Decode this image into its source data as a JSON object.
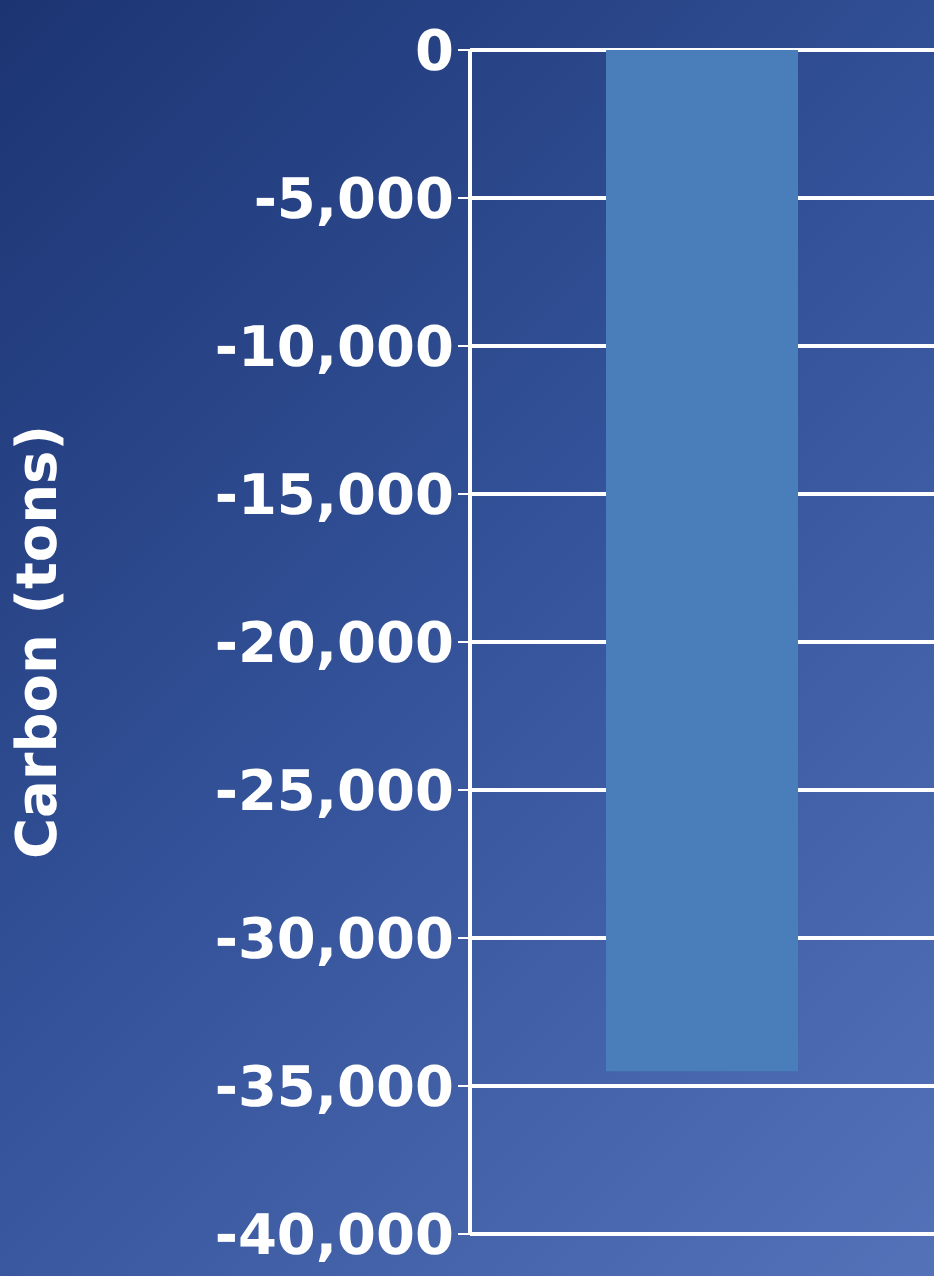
{
  "chart_data": {
    "type": "bar",
    "ylabel": "Carbon (tons)",
    "categories": [
      null
    ],
    "values": [
      -34500
    ],
    "color": "#4a7ebb",
    "ylim": [
      -40000,
      0
    ],
    "yticks": [
      {
        "value": 0,
        "label": "0"
      },
      {
        "value": -5000,
        "label": "-5,000"
      },
      {
        "value": -10000,
        "label": "-10,000"
      },
      {
        "value": -15000,
        "label": "-15,000"
      },
      {
        "value": -20000,
        "label": "-20,000"
      },
      {
        "value": -25000,
        "label": "-25,000"
      },
      {
        "value": -30000,
        "label": "-30,000"
      },
      {
        "value": -35000,
        "label": "-35,000"
      },
      {
        "value": -40000,
        "label": "-40,000"
      }
    ],
    "grid": "y",
    "tick_labels": "y"
  }
}
